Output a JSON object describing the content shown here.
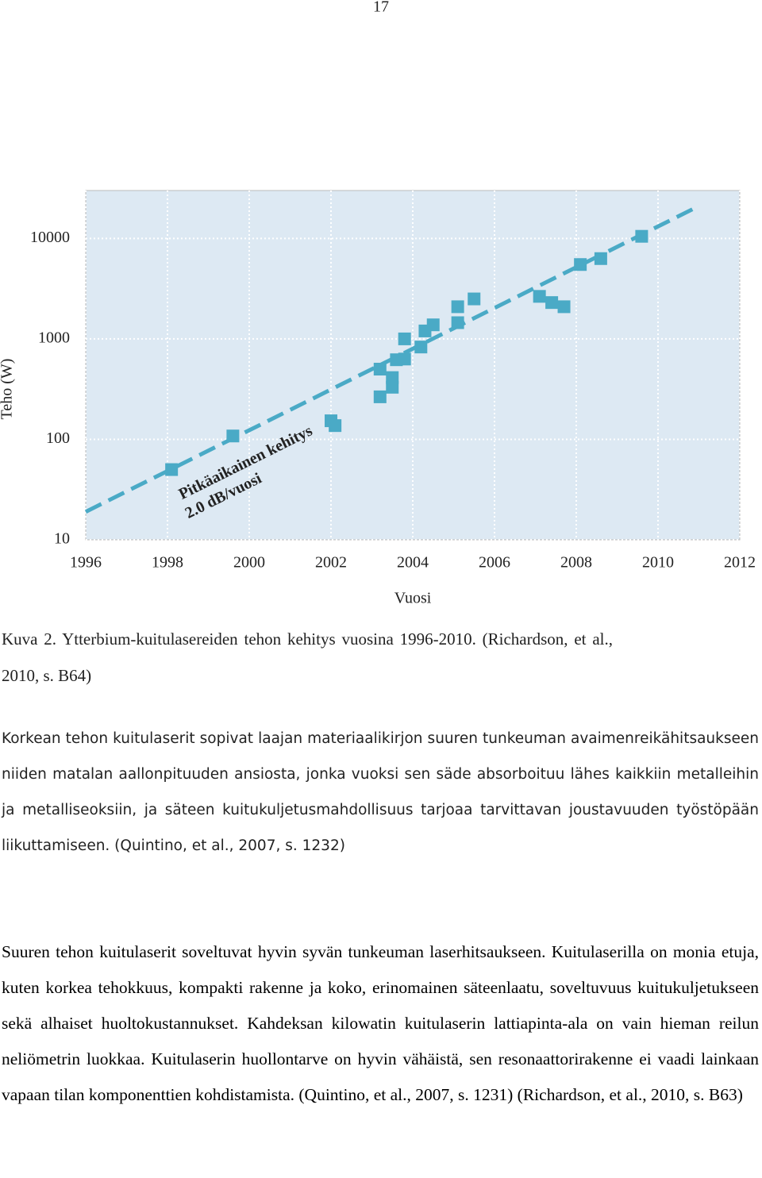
{
  "page_number": "17",
  "chart_data": {
    "type": "scatter",
    "xlabel": "Vuosi",
    "ylabel": "Teho (W)",
    "xlim": [
      1996,
      2012
    ],
    "xticks": [
      1996,
      1998,
      2000,
      2002,
      2004,
      2006,
      2008,
      2010,
      2012
    ],
    "ylim": [
      10,
      30000
    ],
    "yticks": [
      10,
      100,
      1000,
      10000
    ],
    "log_y": true,
    "grid": true,
    "background": "#dde9f3",
    "series": [
      {
        "color": "#4aaac6",
        "x": [
          1998.1,
          1999.6,
          2002.0,
          2002.1,
          2003.2,
          2003.2,
          2003.5,
          2003.5,
          2003.6,
          2003.8,
          2003.8,
          2004.2,
          2004.3,
          2004.5,
          2005.1,
          2005.1,
          2005.5,
          2007.1,
          2007.4,
          2007.7,
          2008.1,
          2008.6,
          2009.6
        ],
        "values": [
          50,
          108,
          153,
          137,
          265,
          500,
          330,
          412,
          620,
          1000,
          630,
          830,
          1200,
          1380,
          1450,
          2090,
          2500,
          2650,
          2300,
          2090,
          5500,
          6300,
          10500
        ]
      }
    ],
    "trend": {
      "color": "#4aaac6",
      "x": [
        1996,
        2011
      ],
      "values": [
        19,
        21000
      ]
    },
    "annotations": [
      "Pitkäaikainen kehitys",
      "2.0 dB/vuosi"
    ]
  },
  "caption": "Kuva 2. Ytterbium-kuitulasereiden tehon kehitys vuosina 1996-2010. (Richardson, et al., 2010, s. B64)",
  "paragraphs": [
    "Korkean tehon kuitulaserit sopivat laajan materiaalikirjon suuren tunkeuman avaimenreikähitsaukseen niiden matalan aallonpituuden ansiosta, jonka vuoksi sen säde absorboituu lähes kaikkiin metalleihin ja metalliseoksiin, ja säteen kuitukuljetusmahdollisuus tarjoaa tarvittavan joustavuuden työstöpään liikuttamiseen. (Quintino, et al., 2007, s. 1232)",
    "Suuren tehon kuitulaserit soveltuvat hyvin syvän tunkeuman laserhitsaukseen. Kuitulaserilla on monia etuja, kuten korkea tehokkuus, kompakti rakenne ja koko, erinomainen säteenlaatu, soveltuvuus kuitukuljetukseen sekä alhaiset huoltokustannukset. Kahdeksan kilowatin kuitulaserin lattiapinta-ala on vain hieman reilun neliömetrin luokkaa. Kuitulaserin huollontarve on hyvin vähäistä, sen resonaattorirakenne ei vaadi lainkaan vapaan tilan komponenttien kohdistamista. (Quintino, et al., 2007, s. 1231) (Richardson, et al., 2010, s. B63)"
  ]
}
